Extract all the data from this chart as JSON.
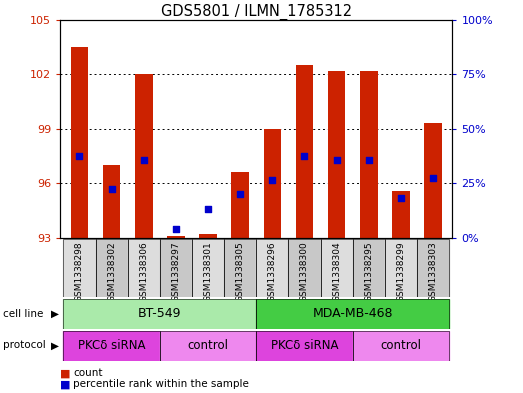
{
  "title": "GDS5801 / ILMN_1785312",
  "samples": [
    "GSM1338298",
    "GSM1338302",
    "GSM1338306",
    "GSM1338297",
    "GSM1338301",
    "GSM1338305",
    "GSM1338296",
    "GSM1338300",
    "GSM1338304",
    "GSM1338295",
    "GSM1338299",
    "GSM1338303"
  ],
  "bar_values": [
    103.5,
    97.0,
    102.0,
    93.1,
    93.2,
    96.6,
    99.0,
    102.5,
    102.2,
    102.2,
    95.6,
    99.3
  ],
  "bar_base": 93.0,
  "blue_values": [
    97.5,
    95.7,
    97.3,
    93.5,
    94.6,
    95.4,
    96.2,
    97.5,
    97.3,
    97.3,
    95.2,
    96.3
  ],
  "ylim": [
    93,
    105
  ],
  "yticks": [
    93,
    96,
    99,
    102,
    105
  ],
  "right_yticks": [
    0,
    25,
    50,
    75,
    100
  ],
  "bar_color": "#cc2200",
  "blue_color": "#0000cc",
  "cell_lines": [
    {
      "label": "BT-549",
      "start": 0,
      "end": 6,
      "color": "#aaeaaa"
    },
    {
      "label": "MDA-MB-468",
      "start": 6,
      "end": 12,
      "color": "#44cc44"
    }
  ],
  "protocols": [
    {
      "label": "PKCδ siRNA",
      "start": 0,
      "end": 3,
      "color": "#dd44dd"
    },
    {
      "label": "control",
      "start": 3,
      "end": 6,
      "color": "#ee88ee"
    },
    {
      "label": "PKCδ siRNA",
      "start": 6,
      "end": 9,
      "color": "#dd44dd"
    },
    {
      "label": "control",
      "start": 9,
      "end": 12,
      "color": "#ee88ee"
    }
  ],
  "left_tick_color": "#cc2200",
  "right_tick_color": "#0000cc"
}
